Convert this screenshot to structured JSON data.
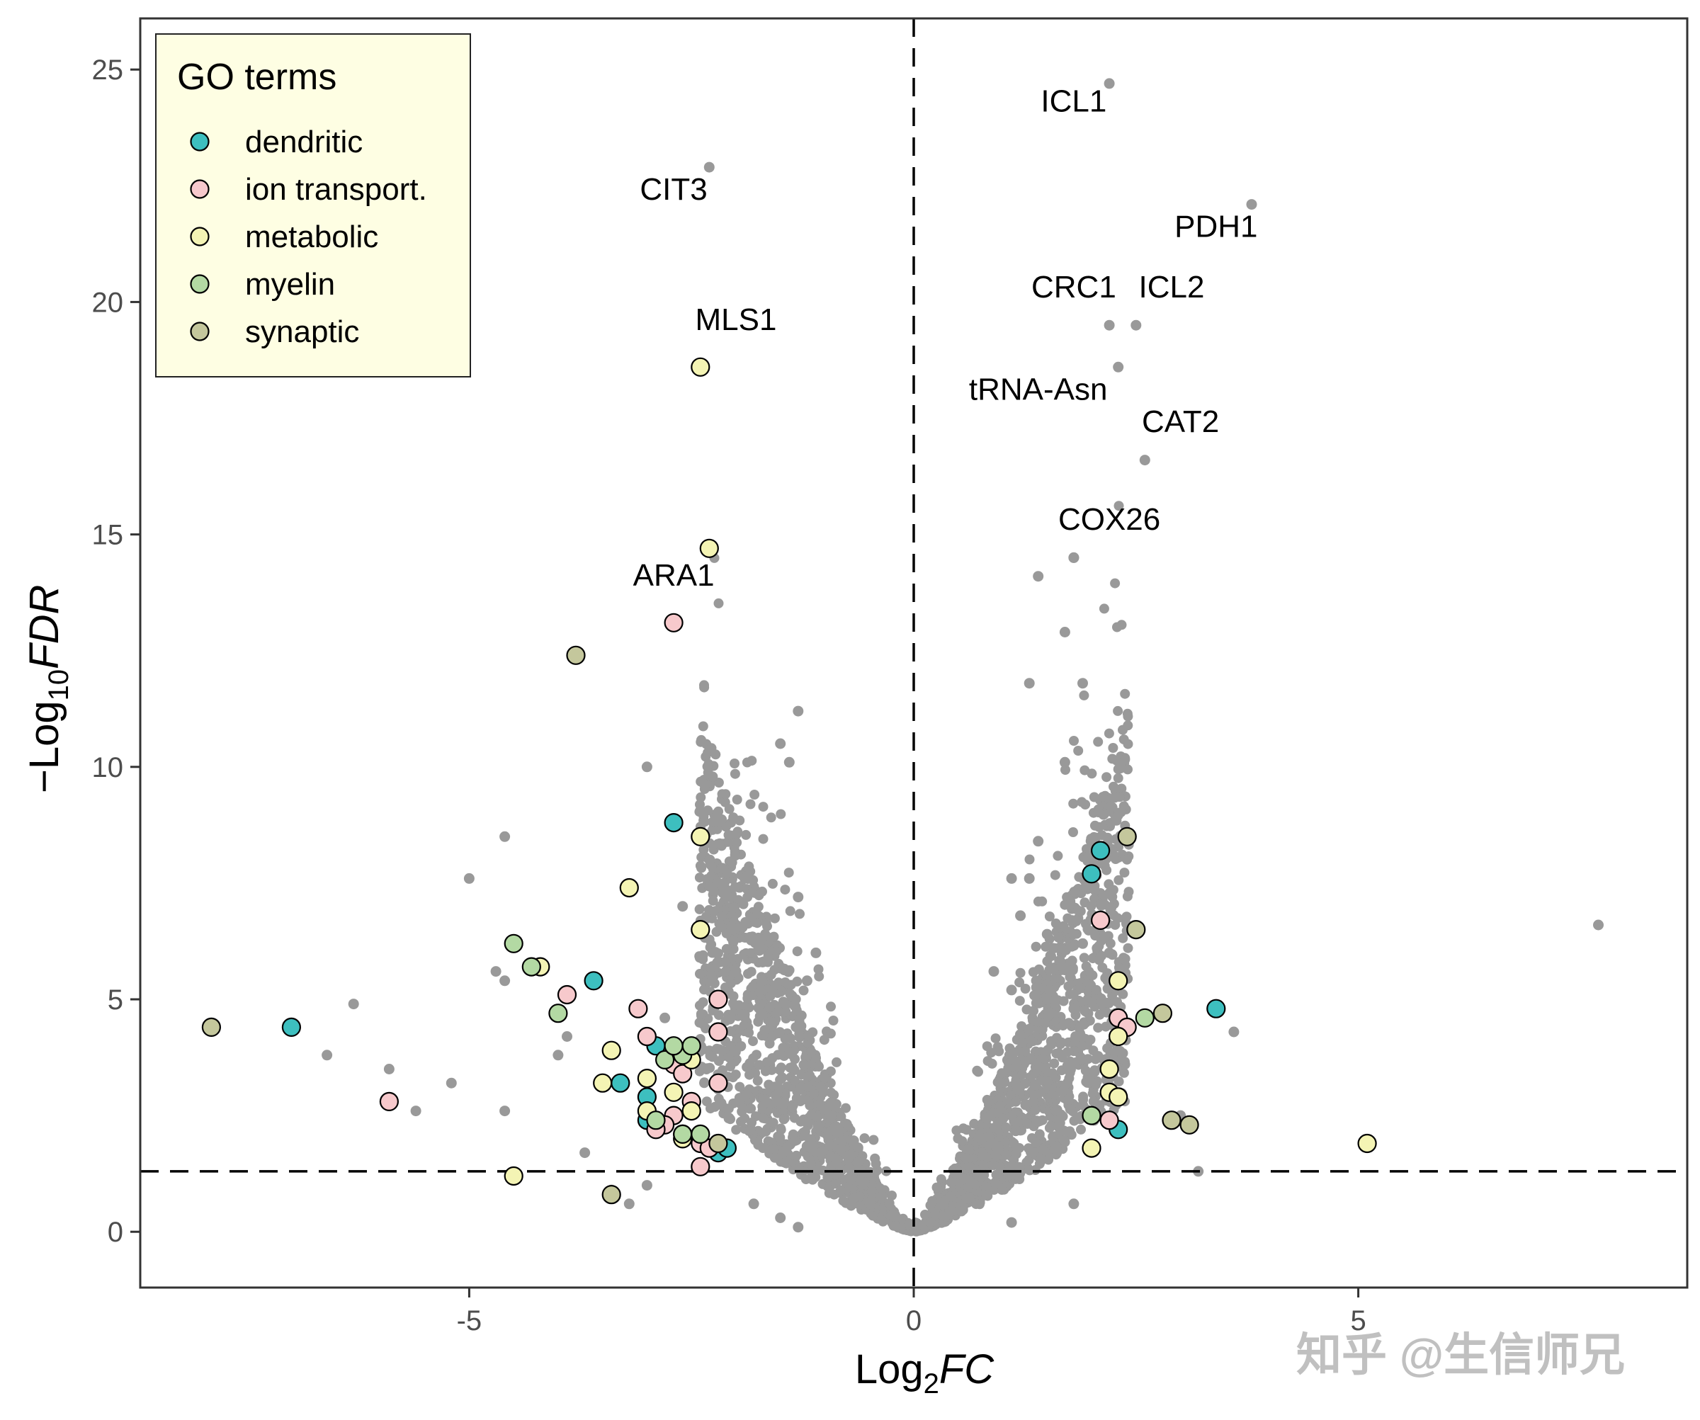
{
  "chart_data": {
    "type": "scatter",
    "title": "",
    "xlabel": {
      "base": "Log",
      "sub": "2",
      "var": "FC"
    },
    "ylabel": {
      "prefix": "−",
      "base": "Log",
      "sub": "10",
      "var": "FDR"
    },
    "xlim": [
      -8.7,
      8.7
    ],
    "ylim": [
      -1.2,
      26.1
    ],
    "x_ticks": [
      {
        "value": -5,
        "label": "-5"
      },
      {
        "value": 0,
        "label": "0"
      },
      {
        "value": 5,
        "label": "5"
      }
    ],
    "y_ticks": [
      {
        "value": 0,
        "label": "0"
      },
      {
        "value": 5,
        "label": "5"
      },
      {
        "value": 10,
        "label": "10"
      },
      {
        "value": 15,
        "label": "15"
      },
      {
        "value": 20,
        "label": "20"
      },
      {
        "value": 25,
        "label": "25"
      }
    ],
    "grid": false,
    "thresholds": {
      "x": 0,
      "y": 1.3
    },
    "legend": {
      "title": "GO terms",
      "position": "top-left",
      "entries": [
        {
          "name": "dendritic",
          "color": "#3dbfbf"
        },
        {
          "name": "ion transport.",
          "color": "#f7c9cc"
        },
        {
          "name": "metabolic",
          "color": "#f4f4b4"
        },
        {
          "name": "myelin",
          "color": "#b3d9a3"
        },
        {
          "name": "synaptic",
          "color": "#c4c79c"
        }
      ]
    },
    "background_color": "#999999",
    "background_points": [
      [
        1.4,
        14.1
      ],
      [
        1.8,
        14.5
      ],
      [
        1.7,
        12.9
      ],
      [
        1.3,
        11.8
      ],
      [
        1.9,
        11.8
      ],
      [
        1.7,
        10.1
      ],
      [
        1.4,
        8.4
      ],
      [
        1.1,
        7.6
      ],
      [
        1.3,
        7.6
      ],
      [
        1.2,
        6.8
      ],
      [
        1.5,
        6.4
      ],
      [
        1.9,
        6.2
      ],
      [
        2.2,
        6.0
      ],
      [
        0.9,
        5.6
      ],
      [
        1.1,
        5.2
      ],
      [
        1.5,
        5.0
      ],
      [
        1.8,
        4.8
      ],
      [
        7.7,
        6.6
      ],
      [
        3.6,
        4.3
      ],
      [
        3.2,
        1.3
      ],
      [
        3.0,
        2.5
      ],
      [
        1.8,
        0.6
      ],
      [
        1.1,
        0.2
      ],
      [
        -1.3,
        11.2
      ],
      [
        -1.5,
        10.5
      ],
      [
        -1.4,
        10.1
      ],
      [
        -3.0,
        10.0
      ],
      [
        -4.6,
        8.5
      ],
      [
        -5.0,
        7.6
      ],
      [
        -1.3,
        7.2
      ],
      [
        -1.9,
        7.6
      ],
      [
        -2.6,
        7.0
      ],
      [
        -4.7,
        5.6
      ],
      [
        -4.6,
        5.4
      ],
      [
        -6.3,
        4.9
      ],
      [
        -6.6,
        3.8
      ],
      [
        -5.9,
        3.5
      ],
      [
        -5.2,
        3.2
      ],
      [
        -5.6,
        2.6
      ],
      [
        -4.6,
        2.6
      ],
      [
        -4.0,
        3.8
      ],
      [
        -3.9,
        4.2
      ],
      [
        -2.8,
        4.6
      ],
      [
        -3.7,
        1.7
      ],
      [
        -3.4,
        0.9
      ],
      [
        -3.2,
        0.6
      ],
      [
        -3.0,
        1.0
      ],
      [
        -1.8,
        0.6
      ],
      [
        -1.5,
        0.3
      ],
      [
        -1.3,
        0.1
      ],
      [
        -2.0,
        5.6
      ],
      [
        -1.7,
        5.8
      ],
      [
        -1.2,
        5.4
      ],
      [
        -1.1,
        6.0
      ]
    ],
    "series": [
      {
        "name": "dendritic",
        "points": [
          [
            -7.0,
            4.4
          ],
          [
            -3.6,
            5.4
          ],
          [
            -3.3,
            3.2
          ],
          [
            -2.7,
            8.8
          ],
          [
            -3.0,
            2.9
          ],
          [
            -3.0,
            2.4
          ],
          [
            -2.9,
            4.0
          ],
          [
            -2.2,
            1.7
          ],
          [
            -2.1,
            1.8
          ],
          [
            2.1,
            8.2
          ],
          [
            2.0,
            7.7
          ],
          [
            2.3,
            2.2
          ],
          [
            3.4,
            4.8
          ]
        ]
      },
      {
        "name": "ion transport.",
        "points": [
          [
            -2.7,
            13.1
          ],
          [
            -5.9,
            2.8
          ],
          [
            -3.9,
            5.1
          ],
          [
            -3.1,
            4.8
          ],
          [
            -3.0,
            4.2
          ],
          [
            -2.7,
            3.6
          ],
          [
            -2.6,
            3.4
          ],
          [
            -2.2,
            5.0
          ],
          [
            -2.2,
            4.3
          ],
          [
            -2.2,
            3.2
          ],
          [
            -2.5,
            2.8
          ],
          [
            -2.7,
            2.5
          ],
          [
            -2.8,
            2.3
          ],
          [
            -2.6,
            2.1
          ],
          [
            -2.4,
            1.9
          ],
          [
            -2.3,
            1.8
          ],
          [
            -2.4,
            1.4
          ],
          [
            -2.9,
            2.2
          ],
          [
            2.1,
            6.7
          ],
          [
            2.3,
            4.6
          ],
          [
            2.4,
            4.4
          ],
          [
            2.2,
            2.4
          ]
        ]
      },
      {
        "name": "metabolic",
        "points": [
          [
            -2.4,
            18.6
          ],
          [
            -2.3,
            14.7
          ],
          [
            -2.4,
            8.5
          ],
          [
            -3.2,
            7.4
          ],
          [
            -2.4,
            6.5
          ],
          [
            -4.2,
            5.7
          ],
          [
            -3.4,
            3.9
          ],
          [
            -3.5,
            3.2
          ],
          [
            -3.0,
            3.3
          ],
          [
            -2.5,
            3.7
          ],
          [
            -2.7,
            3.0
          ],
          [
            -2.5,
            2.6
          ],
          [
            -2.6,
            2.0
          ],
          [
            -3.0,
            2.6
          ],
          [
            -4.5,
            1.2
          ],
          [
            2.3,
            5.4
          ],
          [
            2.3,
            4.2
          ],
          [
            2.2,
            3.5
          ],
          [
            2.2,
            3.0
          ],
          [
            2.3,
            2.9
          ],
          [
            2.0,
            1.8
          ],
          [
            5.1,
            1.9
          ]
        ]
      },
      {
        "name": "myelin",
        "points": [
          [
            -4.5,
            6.2
          ],
          [
            -4.3,
            5.7
          ],
          [
            -4.0,
            4.7
          ],
          [
            -2.8,
            3.7
          ],
          [
            -2.6,
            3.8
          ],
          [
            -2.7,
            4.0
          ],
          [
            -2.5,
            4.0
          ],
          [
            -2.4,
            2.1
          ],
          [
            -2.6,
            2.1
          ],
          [
            -2.9,
            2.4
          ],
          [
            2.0,
            2.5
          ],
          [
            2.6,
            4.6
          ]
        ]
      },
      {
        "name": "synaptic",
        "points": [
          [
            -7.9,
            4.4
          ],
          [
            -3.8,
            12.4
          ],
          [
            -3.4,
            0.8
          ],
          [
            -2.2,
            1.9
          ],
          [
            2.4,
            8.5
          ],
          [
            2.5,
            6.5
          ],
          [
            2.8,
            4.7
          ],
          [
            2.9,
            2.4
          ],
          [
            3.1,
            2.3
          ]
        ]
      }
    ],
    "annotations": [
      {
        "label": "ICL1",
        "x": 2.2,
        "y": 24.7,
        "lx": 1.8,
        "ly": 24.1
      },
      {
        "label": "CIT3",
        "x": -2.3,
        "y": 22.9,
        "lx": -2.7,
        "ly": 22.2
      },
      {
        "label": "PDH1",
        "x": 3.8,
        "y": 22.1,
        "lx": 3.4,
        "ly": 21.4
      },
      {
        "label": "CRC1",
        "x": 2.2,
        "y": 19.5,
        "lx": 1.8,
        "ly": 20.1
      },
      {
        "label": "ICL2",
        "x": 2.5,
        "y": 19.5,
        "lx": 2.9,
        "ly": 20.1
      },
      {
        "label": "MLS1",
        "x": -2.4,
        "y": 18.6,
        "lx": -2.0,
        "ly": 19.4
      },
      {
        "label": "tRNA-Asn",
        "x": 2.3,
        "y": 18.6,
        "lx": 1.4,
        "ly": 17.9
      },
      {
        "label": "CAT2",
        "x": 2.6,
        "y": 16.6,
        "lx": 3.0,
        "ly": 17.2
      },
      {
        "label": "COX26",
        "x": 1.8,
        "y": 14.5,
        "lx": 2.2,
        "ly": 15.1
      },
      {
        "label": "ARA1",
        "x": -2.7,
        "y": 13.1,
        "lx": -2.7,
        "ly": 13.9
      }
    ],
    "watermark": "知乎 @生信师兄"
  }
}
